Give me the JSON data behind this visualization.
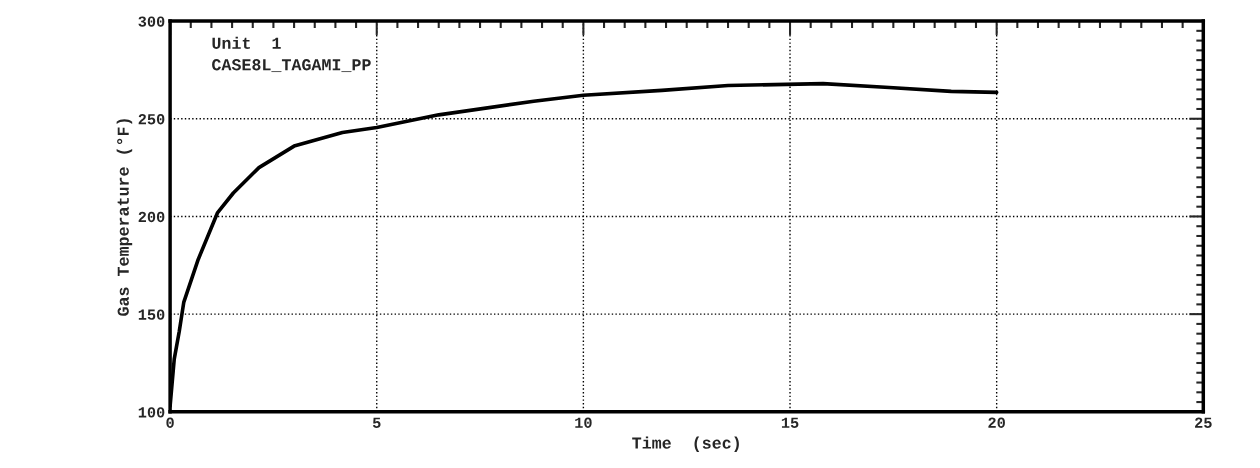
{
  "chart_data": {
    "type": "line",
    "xlabel": "Time  (sec)",
    "ylabel": "Gas Temperature (°F)",
    "annotations": [
      "Unit  1",
      "CASE8L_TAGAMI_PP"
    ],
    "xlim": [
      0,
      25
    ],
    "xticks": [
      0,
      5,
      10,
      15,
      20,
      25
    ],
    "ylim": [
      100,
      300
    ],
    "yticks": [
      100,
      150,
      200,
      250,
      300
    ],
    "grid": true,
    "legend": false,
    "line_style": "solid",
    "marker": "none",
    "series": [
      {
        "color": "#000000",
        "x": [
          0,
          0.1,
          0.22,
          0.33,
          0.68,
          1.15,
          1.53,
          2.15,
          3.0,
          4.17,
          5.0,
          6.5,
          8.8,
          10.0,
          11.9,
          13.5,
          15.8,
          17.4,
          18.9,
          20.0
        ],
        "values": [
          103,
          127,
          141,
          156,
          178,
          202,
          212,
          225,
          236,
          243,
          245.5,
          252,
          259,
          262,
          264.5,
          267,
          268,
          266,
          264,
          263.5
        ]
      }
    ]
  }
}
